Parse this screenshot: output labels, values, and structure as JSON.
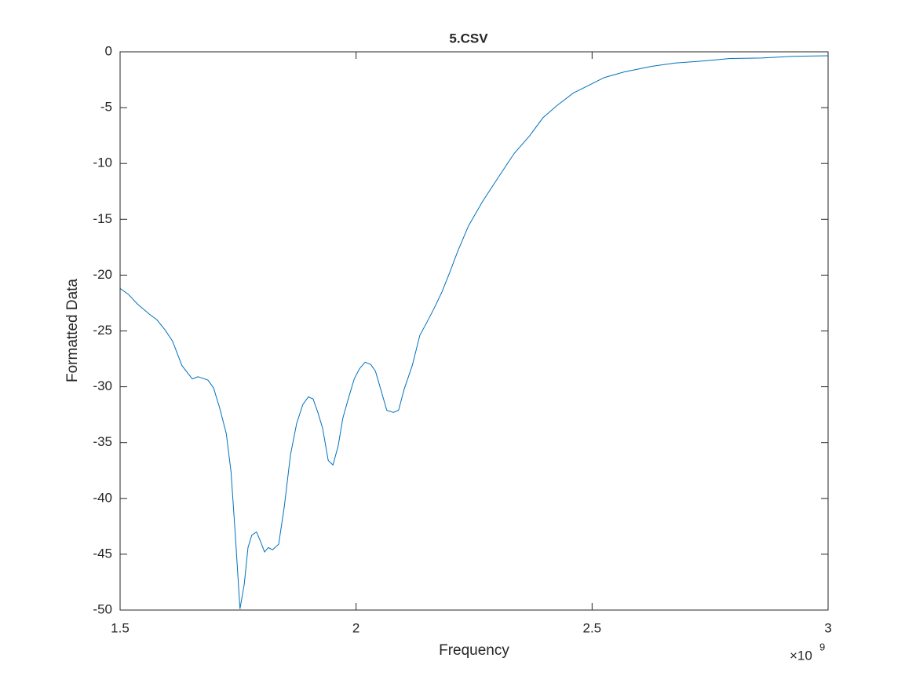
{
  "chart_data": {
    "type": "line",
    "title": "5.CSV",
    "x_label": "Frequency",
    "y_label": "Formatted Data",
    "x_multiplier": {
      "base": "×10",
      "exponent": "9"
    },
    "xlim": [
      1.5,
      3
    ],
    "xticks": [
      1.5,
      2,
      2.5,
      3
    ],
    "ylim": [
      -50,
      0
    ],
    "yticks": [
      -50,
      -45,
      -40,
      -35,
      -30,
      -25,
      -20,
      -15,
      -10,
      -5,
      0
    ],
    "grid": false,
    "series": [
      {
        "name": "5.CSV",
        "color": "#0072bd",
        "x": [
          1.5,
          1.517,
          1.537,
          1.562,
          1.578,
          1.595,
          1.611,
          1.631,
          1.653,
          1.665,
          1.686,
          1.698,
          1.711,
          1.725,
          1.735,
          1.744,
          1.754,
          1.763,
          1.771,
          1.779,
          1.789,
          1.798,
          1.806,
          1.814,
          1.823,
          1.836,
          1.848,
          1.861,
          1.874,
          1.887,
          1.899,
          1.909,
          1.919,
          1.929,
          1.941,
          1.951,
          1.962,
          1.972,
          1.984,
          1.996,
          2.007,
          2.019,
          2.031,
          2.041,
          2.052,
          2.065,
          2.079,
          2.09,
          2.102,
          2.119,
          2.135,
          2.149,
          2.165,
          2.182,
          2.198,
          2.215,
          2.238,
          2.268,
          2.302,
          2.335,
          2.368,
          2.396,
          2.426,
          2.46,
          2.493,
          2.526,
          2.568,
          2.626,
          2.676,
          2.742,
          2.792,
          2.859,
          2.925,
          3
        ],
        "values": [
          -21.2,
          -21.7,
          -22.6,
          -23.5,
          -24.0,
          -24.9,
          -25.9,
          -28.1,
          -29.3,
          -29.1,
          -29.4,
          -30.1,
          -31.9,
          -34.2,
          -37.6,
          -43.2,
          -49.9,
          -47.7,
          -44.4,
          -43.3,
          -43.0,
          -43.9,
          -44.8,
          -44.4,
          -44.6,
          -44.1,
          -40.7,
          -36.1,
          -33.3,
          -31.6,
          -30.9,
          -31.1,
          -32.3,
          -33.7,
          -36.6,
          -37.0,
          -35.3,
          -32.8,
          -31.0,
          -29.3,
          -28.4,
          -27.8,
          -28.0,
          -28.6,
          -30.2,
          -32.1,
          -32.3,
          -32.1,
          -30.2,
          -28.1,
          -25.4,
          -24.3,
          -23.0,
          -21.5,
          -19.8,
          -17.9,
          -15.6,
          -13.4,
          -11.2,
          -9.1,
          -7.5,
          -5.9,
          -4.8,
          -3.7,
          -3.0,
          -2.3,
          -1.8,
          -1.3,
          -1.0,
          -0.8,
          -0.6,
          -0.55,
          -0.4,
          -0.35
        ]
      }
    ]
  }
}
